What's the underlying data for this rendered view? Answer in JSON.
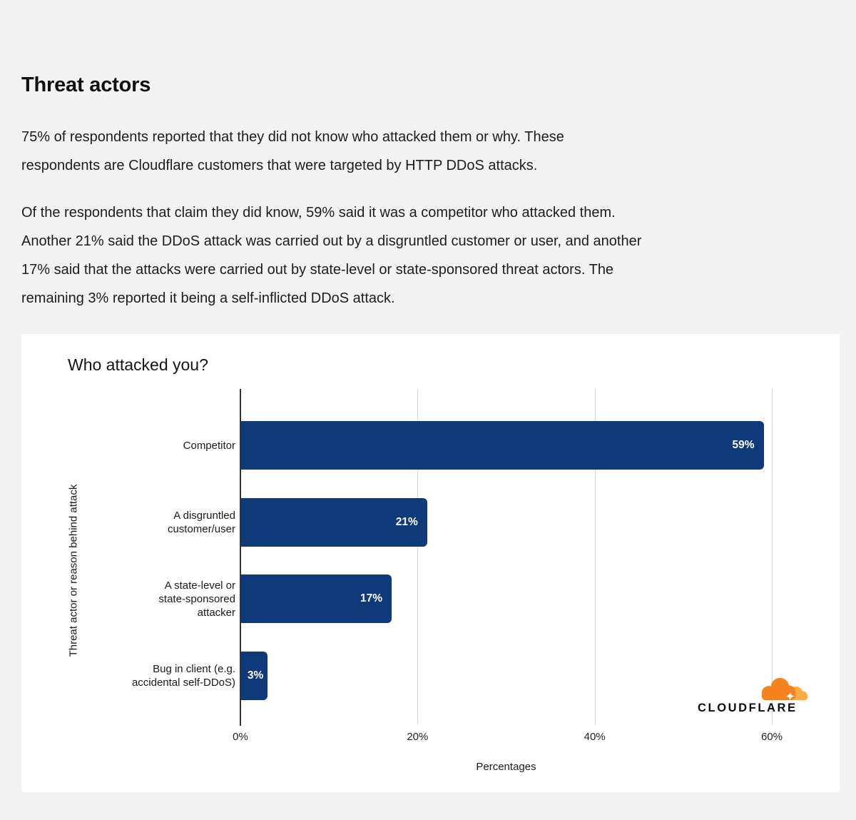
{
  "page": {
    "background": "#f2f2f2"
  },
  "article": {
    "heading": "Threat actors",
    "paragraphs": [
      "75% of respondents reported that they did not know who attacked them or why. These\nrespondents are Cloudflare customers that were targeted by HTTP DDoS attacks.",
      "Of the respondents that claim they did know, 59% said it was a competitor who attacked them.\nAnother 21% said the DDoS attack was carried out by a disgruntled customer or user, and another\n17% said that the attacks were carried out by state-level or state-sponsored threat actors. The\nremaining 3% reported it being a self-inflicted DDoS attack."
    ]
  },
  "chart_data": {
    "type": "bar",
    "orientation": "horizontal",
    "title": "Who attacked you?",
    "xlabel": "Percentages",
    "ylabel": "Threat actor or reason behind attack",
    "xlim": [
      0,
      60
    ],
    "grid": true,
    "x_ticks": [
      "0%",
      "20%",
      "40%",
      "60%"
    ],
    "x_tick_values": [
      0,
      20,
      40,
      60
    ],
    "categories": [
      "Competitor",
      "A disgruntled customer/user",
      "A state-level or state-sponsored attacker",
      "Bug in client (e.g. accidental self-DDoS)"
    ],
    "category_label_lines": [
      [
        "Competitor"
      ],
      [
        "A disgruntled",
        "customer/user"
      ],
      [
        "A state-level or",
        "state-sponsored",
        "attacker"
      ],
      [
        "Bug in client (e.g.",
        "accidental self-DDoS)"
      ]
    ],
    "values": [
      59,
      21,
      17,
      3
    ],
    "value_labels": [
      "59%",
      "21%",
      "17%",
      "3%"
    ],
    "bar_color": "#0e3a7c",
    "axis_color": "#333333",
    "gridline_color": "#d9d9d9"
  },
  "branding": {
    "wordmark": "CLOUDFLARE",
    "cloud_primary": "#f6821f",
    "cloud_secondary": "#fbad41",
    "flare_color": "#ffffff"
  }
}
